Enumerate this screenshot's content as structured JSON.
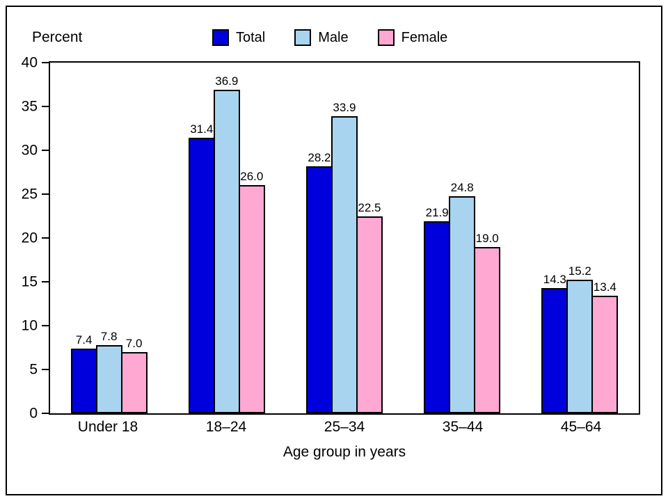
{
  "chart_data": {
    "type": "bar",
    "title": "",
    "ylabel": "Percent",
    "xlabel": "Age group in years",
    "ylim": [
      0,
      40
    ],
    "yticks": [
      0,
      5,
      10,
      15,
      20,
      25,
      30,
      35,
      40
    ],
    "grid": false,
    "legend_position": "top",
    "value_label_format": "one-decimal",
    "categories": [
      "Under 18",
      "18–24",
      "25–34",
      "35–44",
      "45–64"
    ],
    "series": [
      {
        "name": "Total",
        "color": "#0000dd",
        "values": [
          7.4,
          31.4,
          28.2,
          21.9,
          14.3
        ]
      },
      {
        "name": "Male",
        "color": "#a8d4f0",
        "values": [
          7.8,
          36.9,
          33.9,
          24.8,
          15.2
        ]
      },
      {
        "name": "Female",
        "color": "#ffa8d2",
        "values": [
          7.0,
          26.0,
          22.5,
          19.0,
          13.4
        ]
      }
    ]
  }
}
